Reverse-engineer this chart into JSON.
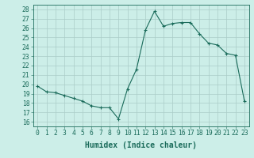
{
  "x": [
    0,
    1,
    2,
    3,
    4,
    5,
    6,
    7,
    8,
    9,
    10,
    11,
    12,
    13,
    14,
    15,
    16,
    17,
    18,
    19,
    20,
    21,
    22,
    23
  ],
  "y": [
    19.8,
    19.2,
    19.1,
    18.8,
    18.5,
    18.2,
    17.7,
    17.5,
    17.5,
    16.3,
    19.5,
    21.6,
    25.8,
    27.8,
    26.2,
    26.5,
    26.6,
    26.6,
    25.4,
    24.4,
    24.2,
    23.3,
    23.1,
    18.2
  ],
  "line_color": "#1a6b5a",
  "marker_color": "#1a6b5a",
  "bg_color": "#cceee8",
  "grid_color": "#aaccc8",
  "plot_bg": "#cceee8",
  "xlabel": "Humidex (Indice chaleur)",
  "ylabel_ticks": [
    16,
    17,
    18,
    19,
    20,
    21,
    22,
    23,
    24,
    25,
    26,
    27,
    28
  ],
  "xlim": [
    -0.5,
    23.5
  ],
  "ylim": [
    15.5,
    28.5
  ],
  "font_color": "#1a6b5a",
  "tick_labelsize": 5.8,
  "xlabel_fontsize": 7.0
}
